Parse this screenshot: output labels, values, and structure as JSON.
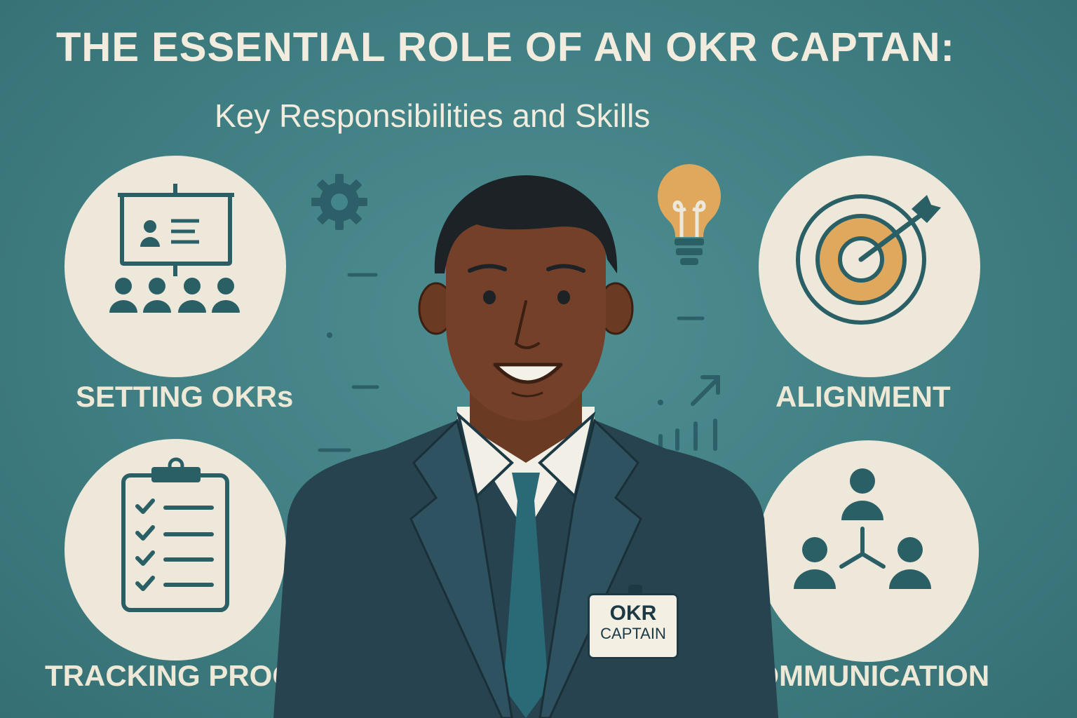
{
  "header": {
    "title": "THE ESSENTIAL ROLE OF AN OKR CAPTAN:",
    "subtitle": "Key Responsibilities and Skills"
  },
  "cards": [
    {
      "label": "SETTING OKRs",
      "icon": "presentation-team-icon"
    },
    {
      "label": "ALIGNMENT",
      "icon": "target-arrow-icon"
    },
    {
      "label": "TRACKING PROGRESS",
      "icon": "clipboard-checklist-icon"
    },
    {
      "label": "COMMUNICATION",
      "icon": "network-people-icon"
    }
  ],
  "badge": {
    "line1": "OKR",
    "line2": "CAPTAIN"
  },
  "decorations": [
    "gear-icon",
    "lightbulb-icon",
    "trend-chart-icon"
  ],
  "colors": {
    "background": "#3f7e82",
    "circle": "#ede8d9",
    "icon": "#2a5f66",
    "accent": "#e0a85c",
    "text": "#f1ecdd",
    "suit": "#26434f"
  }
}
